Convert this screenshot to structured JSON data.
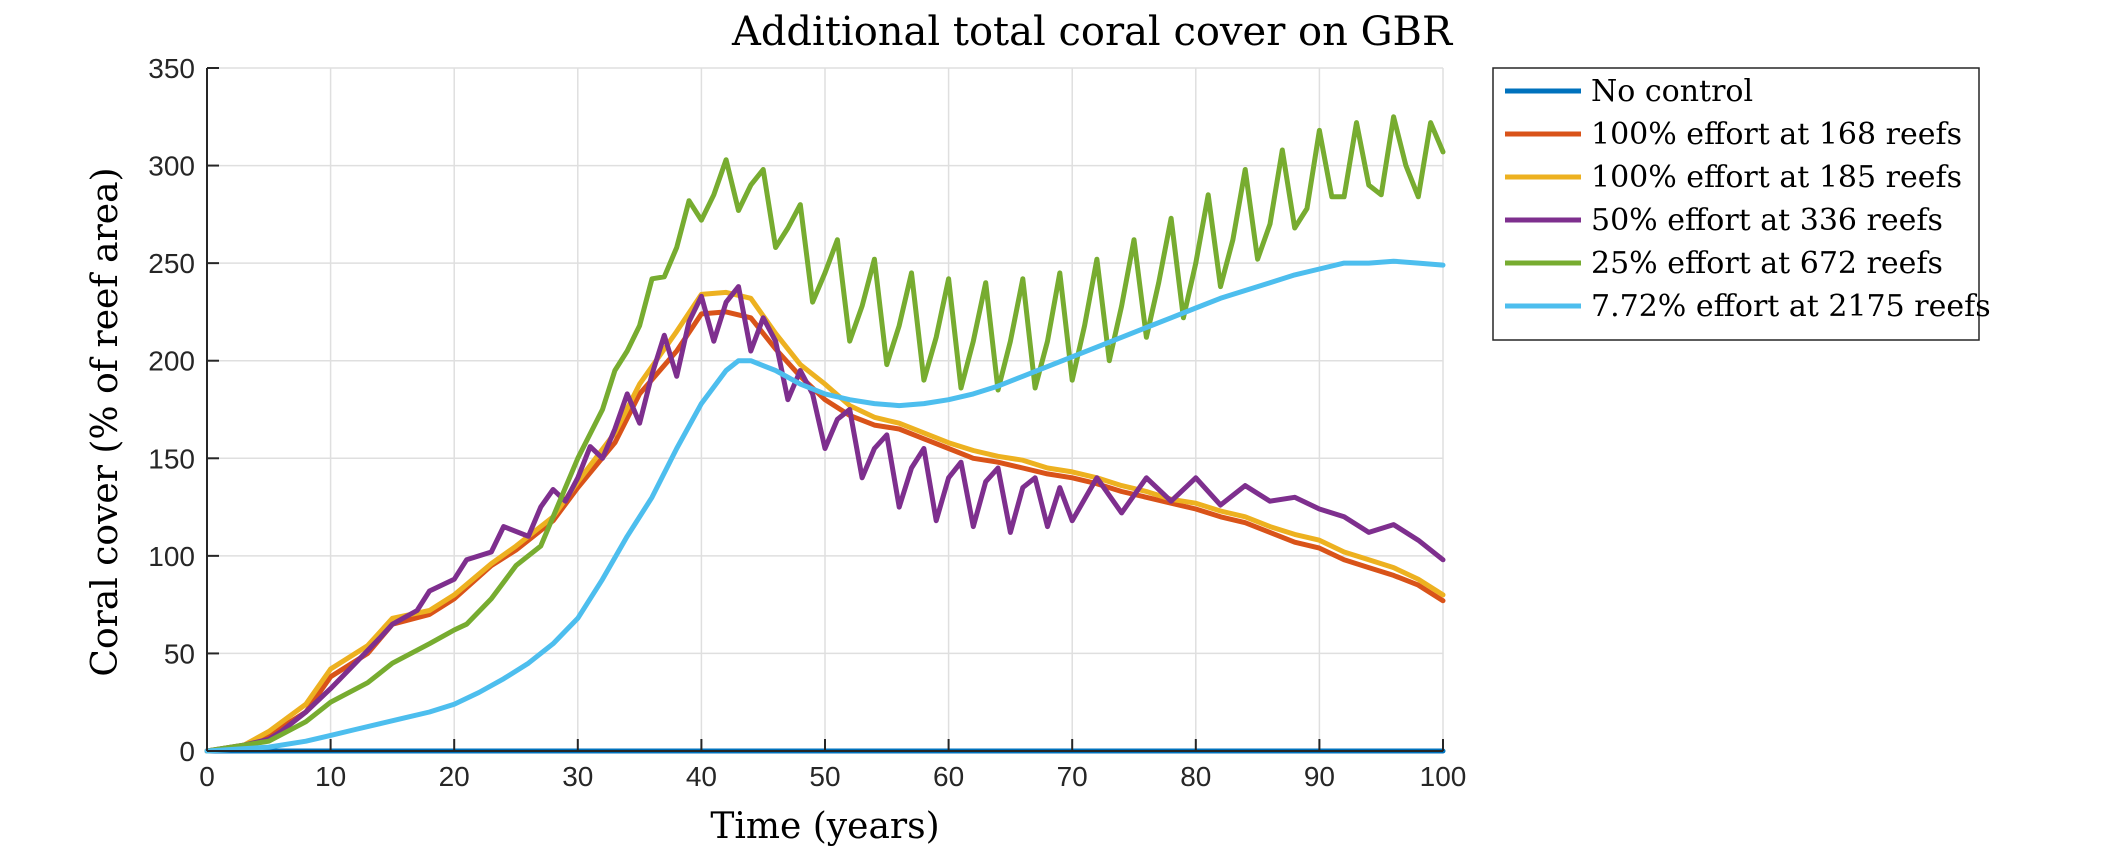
{
  "chart_data": {
    "type": "line",
    "title": "Additional total coral cover on GBR",
    "xlabel": "Time (years)",
    "ylabel": "Coral cover (% of reef area)",
    "xlim": [
      0,
      100
    ],
    "ylim": [
      0,
      350
    ],
    "xticks": [
      0,
      10,
      20,
      30,
      40,
      50,
      60,
      70,
      80,
      90,
      100
    ],
    "yticks": [
      0,
      50,
      100,
      150,
      200,
      250,
      300,
      350
    ],
    "grid": true,
    "legend_position": "outside-right-top",
    "series": [
      {
        "name": "No control",
        "color": "#0072BD",
        "x": [
          0,
          100
        ],
        "y": [
          0,
          0
        ]
      },
      {
        "name": "100% effort at 168 reefs",
        "color": "#D95319",
        "x": [
          0,
          3,
          5,
          8,
          10,
          13,
          15,
          18,
          20,
          23,
          25,
          28,
          30,
          33,
          35,
          38,
          40,
          42,
          44,
          46,
          48,
          50,
          52,
          54,
          56,
          58,
          60,
          62,
          64,
          66,
          68,
          70,
          72,
          74,
          76,
          78,
          80,
          82,
          84,
          86,
          88,
          90,
          92,
          94,
          96,
          98,
          100
        ],
        "y": [
          0,
          2,
          8,
          20,
          38,
          50,
          65,
          70,
          78,
          95,
          103,
          118,
          135,
          158,
          183,
          205,
          224,
          225,
          222,
          206,
          192,
          180,
          172,
          167,
          165,
          160,
          155,
          150,
          148,
          145,
          142,
          140,
          137,
          133,
          130,
          127,
          124,
          120,
          117,
          112,
          107,
          104,
          98,
          94,
          90,
          85,
          77
        ]
      },
      {
        "name": "100% effort at 185 reefs",
        "color": "#EDB120",
        "x": [
          0,
          3,
          5,
          8,
          10,
          13,
          15,
          18,
          20,
          23,
          25,
          28,
          30,
          33,
          35,
          38,
          40,
          42,
          44,
          46,
          48,
          50,
          52,
          54,
          56,
          58,
          60,
          62,
          64,
          66,
          68,
          70,
          72,
          74,
          76,
          78,
          80,
          82,
          84,
          86,
          88,
          90,
          92,
          94,
          96,
          98,
          100
        ],
        "y": [
          0,
          3,
          10,
          24,
          42,
          54,
          68,
          72,
          80,
          96,
          105,
          120,
          138,
          163,
          188,
          215,
          234,
          235,
          232,
          214,
          198,
          188,
          177,
          171,
          168,
          163,
          158,
          154,
          151,
          149,
          145,
          143,
          140,
          136,
          133,
          129,
          127,
          123,
          120,
          115,
          111,
          108,
          102,
          98,
          94,
          88,
          80
        ]
      },
      {
        "name": "50% effort at 336 reefs",
        "color": "#7E2F8E",
        "x": [
          0,
          3,
          5,
          6,
          8,
          10,
          12,
          14,
          15,
          17,
          18,
          20,
          21,
          23,
          24,
          26,
          27,
          28,
          29,
          30,
          31,
          32,
          33,
          34,
          35,
          36,
          37,
          38,
          39,
          40,
          41,
          42,
          43,
          44,
          45,
          46,
          47,
          48,
          49,
          50,
          51,
          52,
          53,
          54,
          55,
          56,
          57,
          58,
          59,
          60,
          61,
          62,
          63,
          64,
          65,
          66,
          67,
          68,
          69,
          70,
          72,
          74,
          76,
          78,
          80,
          82,
          84,
          86,
          88,
          90,
          92,
          94,
          96,
          98,
          100
        ],
        "y": [
          0,
          3,
          6,
          10,
          20,
          32,
          45,
          58,
          65,
          72,
          82,
          88,
          98,
          102,
          115,
          110,
          125,
          134,
          128,
          140,
          156,
          150,
          165,
          183,
          168,
          193,
          213,
          192,
          220,
          233,
          210,
          230,
          238,
          205,
          222,
          210,
          180,
          195,
          183,
          155,
          170,
          175,
          140,
          155,
          162,
          125,
          145,
          155,
          118,
          140,
          148,
          115,
          138,
          145,
          112,
          135,
          140,
          115,
          135,
          118,
          140,
          122,
          140,
          128,
          140,
          126,
          136,
          128,
          130,
          124,
          120,
          112,
          116,
          108,
          98
        ]
      },
      {
        "name": "25% effort at 672 reefs",
        "color": "#77AC30",
        "x": [
          0,
          5,
          8,
          10,
          13,
          15,
          18,
          20,
          21,
          23,
          25,
          27,
          28,
          30,
          32,
          33,
          34,
          35,
          36,
          37,
          38,
          39,
          40,
          41,
          42,
          43,
          44,
          45,
          46,
          47,
          48,
          49,
          50,
          51,
          52,
          53,
          54,
          55,
          56,
          57,
          58,
          59,
          60,
          61,
          62,
          63,
          64,
          65,
          66,
          67,
          68,
          69,
          70,
          71,
          72,
          73,
          74,
          75,
          76,
          77,
          78,
          79,
          80,
          81,
          82,
          83,
          84,
          85,
          86,
          87,
          88,
          89,
          90,
          91,
          92,
          93,
          94,
          95,
          96,
          97,
          98,
          99,
          100
        ],
        "y": [
          0,
          5,
          15,
          25,
          35,
          45,
          55,
          62,
          65,
          78,
          95,
          105,
          120,
          150,
          175,
          195,
          205,
          218,
          242,
          243,
          258,
          282,
          272,
          285,
          303,
          277,
          290,
          298,
          258,
          268,
          280,
          230,
          245,
          262,
          210,
          228,
          252,
          198,
          218,
          245,
          190,
          212,
          242,
          186,
          210,
          240,
          185,
          210,
          242,
          186,
          210,
          245,
          190,
          218,
          252,
          200,
          228,
          262,
          212,
          240,
          273,
          222,
          250,
          285,
          238,
          262,
          298,
          252,
          270,
          308,
          268,
          278,
          318,
          284,
          284,
          322,
          290,
          285,
          325,
          300,
          284,
          322,
          307
        ]
      },
      {
        "name": "7.72% effort at 2175 reefs",
        "color": "#4DBEEE",
        "x": [
          0,
          5,
          8,
          10,
          12,
          14,
          16,
          18,
          20,
          22,
          24,
          26,
          28,
          30,
          32,
          34,
          36,
          38,
          40,
          42,
          43,
          44,
          46,
          48,
          50,
          52,
          54,
          56,
          58,
          60,
          62,
          64,
          66,
          68,
          70,
          72,
          74,
          76,
          78,
          80,
          82,
          84,
          86,
          88,
          90,
          92,
          94,
          96,
          98,
          100
        ],
        "y": [
          0,
          2,
          5,
          8,
          11,
          14,
          17,
          20,
          24,
          30,
          37,
          45,
          55,
          68,
          88,
          110,
          130,
          155,
          178,
          195,
          200,
          200,
          195,
          188,
          183,
          180,
          178,
          177,
          178,
          180,
          183,
          187,
          192,
          197,
          202,
          207,
          212,
          217,
          222,
          227,
          232,
          236,
          240,
          244,
          247,
          250,
          250,
          251,
          250,
          249
        ]
      }
    ]
  }
}
